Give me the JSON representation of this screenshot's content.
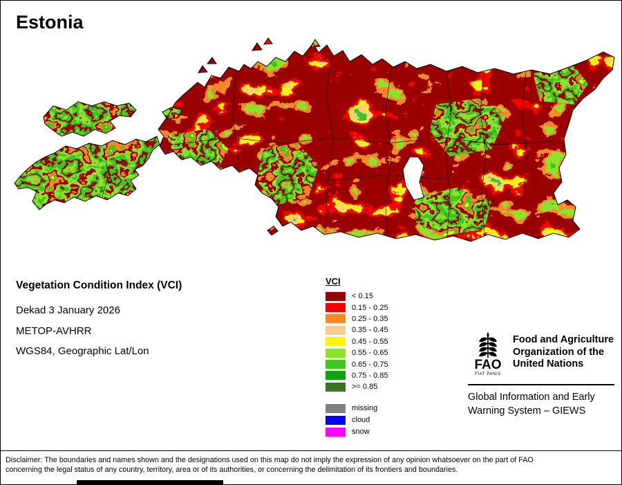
{
  "page": {
    "title": "Estonia"
  },
  "info": {
    "heading": "Vegetation Condition Index (VCI)",
    "lines": [
      "Dekad 3 January 2026",
      "METOP-AVHRR",
      "WGS84, Geographic Lat/Lon"
    ]
  },
  "legend": {
    "title": "VCI",
    "classes": [
      {
        "label": "< 0.15",
        "color": "#9a0000"
      },
      {
        "label": "0.15 - 0.25",
        "color": "#f90000"
      },
      {
        "label": "0.25 - 0.35",
        "color": "#f98828"
      },
      {
        "label": "0.35 - 0.45",
        "color": "#fbcc92"
      },
      {
        "label": "0.45 - 0.55",
        "color": "#fdf501"
      },
      {
        "label": "0.55 - 0.65",
        "color": "#8de32b"
      },
      {
        "label": "0.65 - 0.75",
        "color": "#3fc920"
      },
      {
        "label": "0.75 - 0.85",
        "color": "#10a014"
      },
      {
        "label": ">= 0.85",
        "color": "#3d7424"
      }
    ],
    "extras": [
      {
        "label": "missing",
        "color": "#7f7f7f"
      },
      {
        "label": "cloud",
        "color": "#0000fe"
      },
      {
        "label": "snow",
        "color": "#ff00ff"
      }
    ]
  },
  "org": {
    "logo_text": "FAO",
    "logo_motto": "FIAT PANIS",
    "name_lines": [
      "Food and Agriculture",
      "Organization of the",
      "United Nations"
    ],
    "program_lines": [
      "Global Information and Early",
      "Warning System – GIEWS"
    ]
  },
  "map": {
    "region": "Estonia",
    "dominant_class_color": "#9a0000",
    "water_fill": "#ffffff",
    "outline_color": "#000000"
  },
  "disclaimer": "Disclaimer: The boundaries and names shown and the designations used on this map do not imply the expression of any opinion whatsoever on the part of FAO concerning the legal status of any country, territory, area or of its authorities, or concerning the delimitation of its frontiers and boundaries."
}
